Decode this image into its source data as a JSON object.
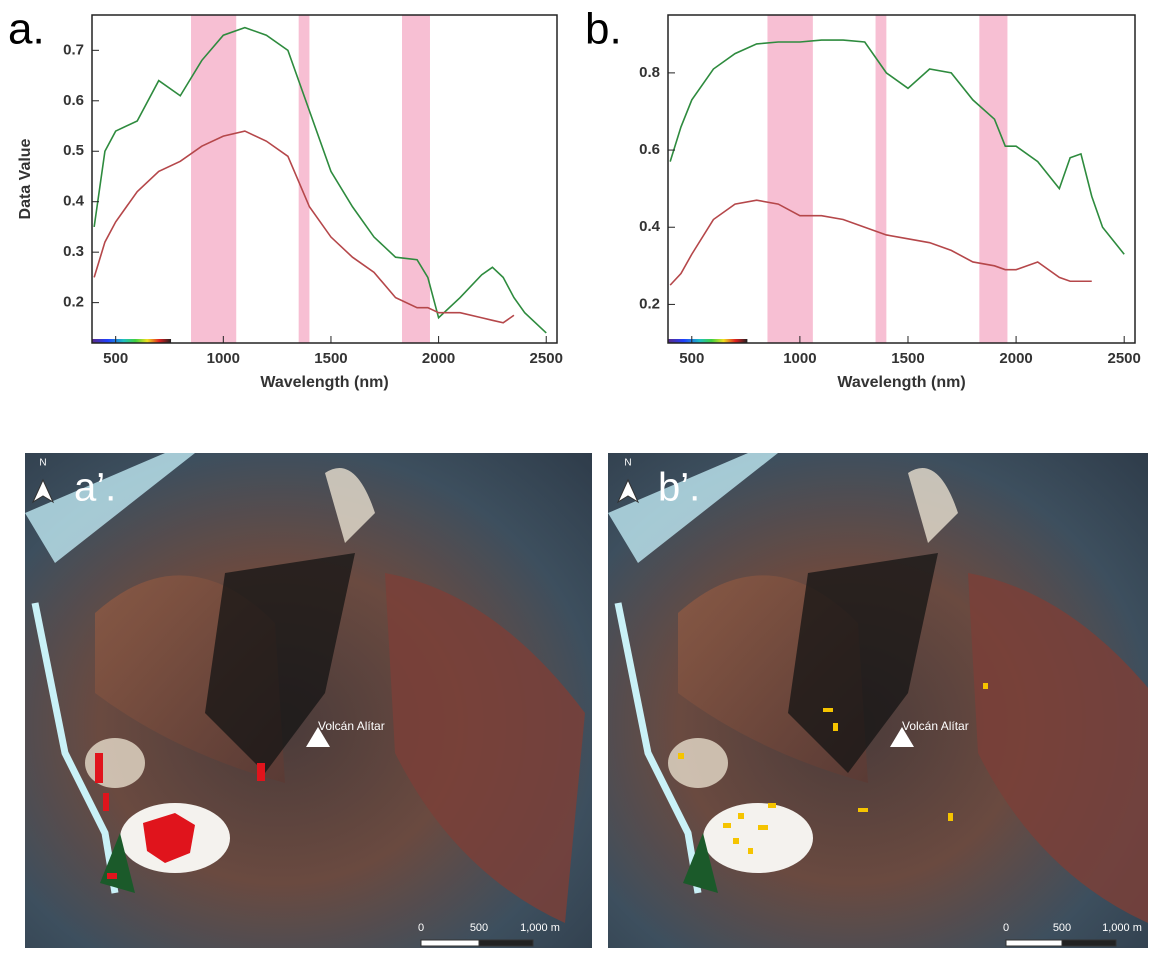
{
  "chart_data": [
    {
      "type": "line",
      "label": "a.",
      "y_label": "Data Value",
      "x_label": "Wavelength (nm)",
      "xlim": [
        390,
        2550
      ],
      "xticks": [
        500,
        1000,
        1500,
        2000,
        2500
      ],
      "ylim": [
        0.12,
        0.77
      ],
      "yticks": [
        0.2,
        0.3,
        0.4,
        0.5,
        0.6,
        0.7
      ],
      "bands": [
        [
          850,
          1060
        ],
        [
          1350,
          1400
        ],
        [
          1830,
          1960
        ]
      ],
      "band_color": "#f7bfd3",
      "x": [
        400,
        450,
        500,
        600,
        700,
        800,
        900,
        1000,
        1100,
        1200,
        1300,
        1400,
        1500,
        1600,
        1700,
        1800,
        1900,
        1950,
        2000,
        2100,
        2200,
        2250,
        2300,
        2350,
        2400,
        2500
      ],
      "series": [
        {
          "color": "#2e8b3e",
          "values": [
            0.35,
            0.5,
            0.54,
            0.56,
            0.64,
            0.61,
            0.68,
            0.73,
            0.745,
            0.73,
            0.7,
            0.58,
            0.46,
            0.39,
            0.33,
            0.29,
            0.285,
            0.25,
            0.17,
            0.21,
            0.255,
            0.27,
            0.25,
            0.21,
            0.18,
            0.14
          ]
        },
        {
          "color": "#b5474a",
          "values": [
            0.25,
            0.32,
            0.36,
            0.42,
            0.46,
            0.48,
            0.51,
            0.53,
            0.54,
            0.52,
            0.49,
            0.39,
            0.33,
            0.29,
            0.26,
            0.21,
            0.19,
            0.19,
            0.18,
            0.18,
            0.17,
            0.165,
            0.16,
            0.175,
            null,
            null
          ]
        }
      ]
    },
    {
      "type": "line",
      "label": "b.",
      "x_label": "Wavelength (nm)",
      "xlim": [
        390,
        2550
      ],
      "xticks": [
        500,
        1000,
        1500,
        2000,
        2500
      ],
      "ylim": [
        0.1,
        0.95
      ],
      "yticks": [
        0.2,
        0.4,
        0.6,
        0.8
      ],
      "bands": [
        [
          850,
          1060
        ],
        [
          1350,
          1400
        ],
        [
          1830,
          1960
        ]
      ],
      "band_color": "#f7bfd3",
      "x": [
        400,
        450,
        500,
        600,
        700,
        800,
        900,
        1000,
        1100,
        1200,
        1300,
        1400,
        1500,
        1600,
        1700,
        1800,
        1900,
        1950,
        2000,
        2100,
        2200,
        2250,
        2300,
        2350,
        2400,
        2500
      ],
      "series": [
        {
          "color": "#2e8b3e",
          "values": [
            0.57,
            0.66,
            0.73,
            0.81,
            0.85,
            0.875,
            0.88,
            0.88,
            0.885,
            0.885,
            0.88,
            0.8,
            0.76,
            0.81,
            0.8,
            0.73,
            0.68,
            0.61,
            0.61,
            0.57,
            0.5,
            0.58,
            0.59,
            0.48,
            0.4,
            0.33
          ]
        },
        {
          "color": "#b5474a",
          "values": [
            0.25,
            0.28,
            0.33,
            0.42,
            0.46,
            0.47,
            0.46,
            0.43,
            0.43,
            0.42,
            0.4,
            0.38,
            0.37,
            0.36,
            0.34,
            0.31,
            0.3,
            0.29,
            0.29,
            0.31,
            0.27,
            0.26,
            0.26,
            0.26,
            null,
            null
          ]
        }
      ]
    }
  ],
  "maps": [
    {
      "label": "a’.",
      "north": "N",
      "place": "Volcán Alítar",
      "scale": [
        "0",
        "500",
        "1,000 m"
      ]
    },
    {
      "label": "b’.",
      "north": "N",
      "place": "Volcán Alítar",
      "scale": [
        "0",
        "500",
        "1,000 m"
      ]
    }
  ]
}
